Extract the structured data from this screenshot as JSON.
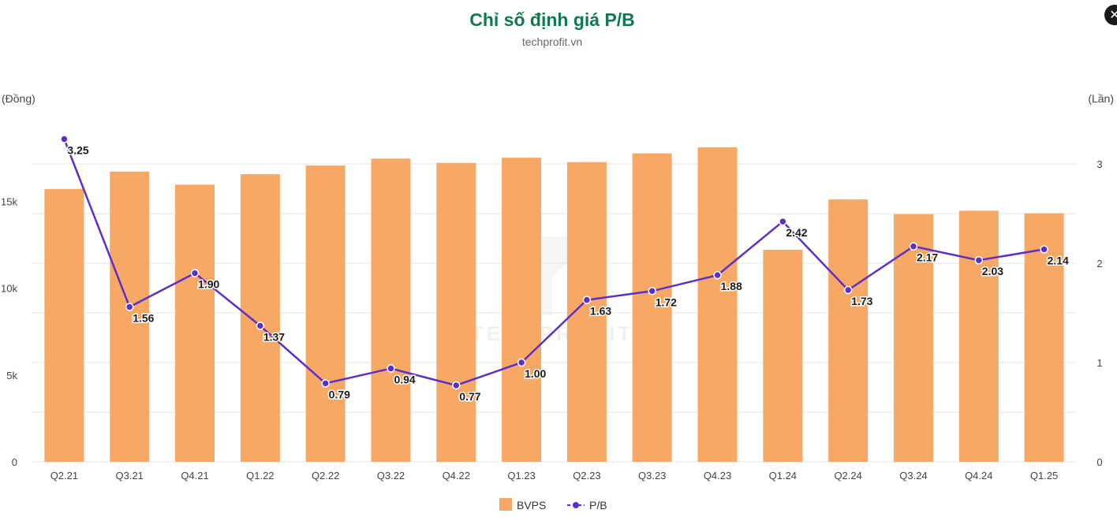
{
  "header": {
    "title": "Chỉ số định giá P/B",
    "subtitle": "techprofit.vn",
    "close_icon": "close-icon"
  },
  "colors": {
    "bar": "#F7A865",
    "line": "#5B2FC9",
    "title": "#0F7A4E",
    "grid": "#E6E6E6"
  },
  "chart_data": {
    "type": "bar",
    "categories": [
      "Q2.21",
      "Q3.21",
      "Q4.21",
      "Q1.22",
      "Q2.22",
      "Q3.22",
      "Q4.22",
      "Q1.23",
      "Q2.23",
      "Q3.23",
      "Q4.23",
      "Q1.24",
      "Q2.24",
      "Q3.24",
      "Q4.24",
      "Q1.25"
    ],
    "series": [
      {
        "name": "BVPS",
        "type": "bar",
        "axis": "left",
        "values": [
          15700,
          16700,
          15950,
          16550,
          17050,
          17450,
          17200,
          17500,
          17250,
          17750,
          18100,
          12200,
          15100,
          14250,
          14450,
          14300
        ]
      },
      {
        "name": "P/B",
        "type": "line",
        "axis": "right",
        "values": [
          3.25,
          1.56,
          1.9,
          1.37,
          0.79,
          0.94,
          0.77,
          1.0,
          1.63,
          1.72,
          1.88,
          2.42,
          1.73,
          2.17,
          2.03,
          2.14
        ],
        "labels": [
          "3.25",
          "1.56",
          "1.90",
          "1.37",
          "0.79",
          "0.94",
          "0.77",
          "1.00",
          "1.63",
          "1.72",
          "1.88",
          "2.42",
          "1.73",
          "2.17",
          "2.03",
          "2.14"
        ]
      }
    ],
    "left_axis": {
      "unit_label": "(Đồng)",
      "min": 0,
      "max": 20000,
      "ticks": [
        0,
        5000,
        10000,
        15000
      ],
      "tick_labels": [
        "0",
        "5k",
        "10k",
        "15k"
      ]
    },
    "right_axis": {
      "unit_label": "(Lần)",
      "min": 0,
      "max": 3.5,
      "ticks": [
        0,
        1,
        2,
        3
      ],
      "tick_labels": [
        "0",
        "1",
        "2",
        "3"
      ]
    },
    "grid": true,
    "legend": {
      "placement": "bottom-center",
      "items": [
        "BVPS",
        "P/B"
      ]
    },
    "watermark": "TECHPROFIT"
  }
}
